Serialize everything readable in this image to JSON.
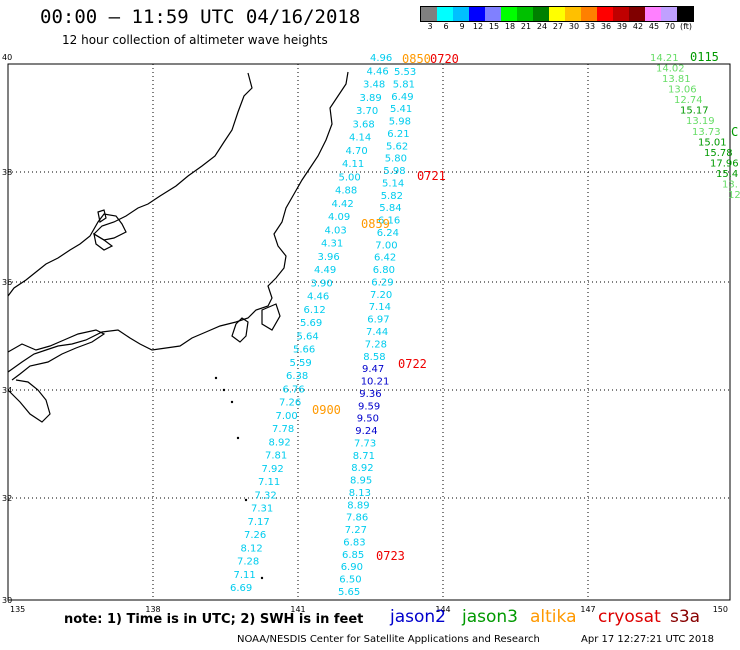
{
  "header": {
    "title": "00:00 – 11:59 UTC 04/16/2018",
    "subtitle": "12 hour collection of altimeter wave heights"
  },
  "color_scale": {
    "labels": [
      "3",
      "6",
      "9",
      "12",
      "15",
      "18",
      "21",
      "24",
      "27",
      "30",
      "33",
      "36",
      "39",
      "42",
      "45",
      "70",
      "(ft)"
    ],
    "colors": [
      "#808080",
      "#00ffff",
      "#00c0ff",
      "#0000ff",
      "#8080ff",
      "#00ff00",
      "#00c000",
      "#008000",
      "#ffff00",
      "#ffc000",
      "#ff8000",
      "#ff0000",
      "#c00000",
      "#800000",
      "#ff80ff",
      "#c0a0ff",
      "#000000"
    ]
  },
  "axes": {
    "lon_labels": [
      "135",
      "138",
      "141",
      "144",
      "147",
      "150"
    ],
    "lat_labels": [
      "40",
      "38",
      "36",
      "34",
      "32",
      "30"
    ]
  },
  "tracks": {
    "track_a": {
      "values": [
        "4.96",
        "4.46",
        "3.48",
        "3.89",
        "3.70",
        "3.68",
        "4.14",
        "4.70",
        "4.11",
        "5.00",
        "4.88",
        "4.42",
        "4.09",
        "4.03",
        "4.31",
        "3.96",
        "4.49",
        "3.90",
        "4.46",
        "6.12",
        "5.69",
        "5.64",
        "5.66",
        "5.59",
        "6.38",
        "6.76",
        "7.26",
        "7.00",
        "7.78",
        "8.92",
        "7.81",
        "7.92",
        "7.11",
        "7.32",
        "7.31",
        "7.17",
        "7.26",
        "8.12",
        "7.28",
        "7.11",
        "6.69"
      ],
      "time_labels": [
        "0850",
        "0859",
        "0900"
      ]
    },
    "track_b": {
      "values": [
        "5.53",
        "5.81",
        "6.49",
        "5.41",
        "5.98",
        "6.21",
        "5.62",
        "5.80",
        "5.98",
        "5.14",
        "5.82",
        "5.84",
        "6.16",
        "6.24",
        "7.00",
        "6.42",
        "6.80",
        "6.29",
        "7.20",
        "7.14",
        "6.97",
        "7.44",
        "7.28",
        "8.58",
        "9.47",
        "10.21",
        "9.36",
        "9.59",
        "9.50",
        "9.24",
        "7.73",
        "8.71",
        "8.92",
        "8.95",
        "8.13",
        "8.89",
        "7.86",
        "7.27",
        "6.83",
        "6.85",
        "6.90",
        "6.50",
        "5.65"
      ],
      "time_labels": [
        "0720",
        "0721",
        "0722",
        "0723"
      ]
    },
    "track_c": {
      "values": [
        "14.21",
        "14.02",
        "13.81",
        "13.06",
        "12.74",
        "15.17",
        "13.19",
        "13.73",
        "15.01",
        "15.78",
        "17.96",
        "15.4",
        "13.",
        "12"
      ],
      "time_labels": [
        "0115",
        "C"
      ]
    }
  },
  "colors": {
    "cyan": "#00ccee",
    "blue": "#0000cc",
    "light_green": "#66dd66",
    "green": "#009900",
    "orange": "#ff9900",
    "red": "#ee0000",
    "coast": "#000000"
  },
  "footer": {
    "note": "note: 1) Time is in UTC; 2) SWH is in feet",
    "legend": [
      {
        "label": "jason2",
        "color": "#0000cc"
      },
      {
        "label": "jason3",
        "color": "#009900"
      },
      {
        "label": "altika",
        "color": "#ff9900"
      },
      {
        "label": "cryosat",
        "color": "#dd0000"
      },
      {
        "label": "s3a",
        "color": "#880000"
      }
    ],
    "credit": "NOAA/NESDIS Center for Satellite Applications and Research",
    "timestamp": "Apr 17 12:27:21 UTC 2018"
  }
}
